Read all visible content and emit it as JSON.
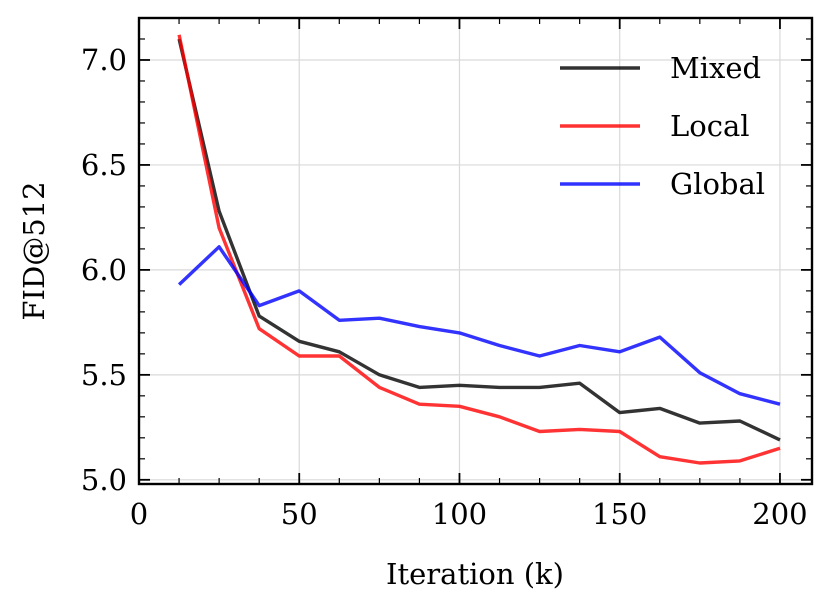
{
  "chart_data": {
    "type": "line",
    "title": "",
    "xlabel": "Iteration (k)",
    "ylabel": "FID@512",
    "xlim": [
      0,
      210
    ],
    "ylim": [
      4.98,
      7.2
    ],
    "grid": true,
    "legend_position": "top-right",
    "x_ticks": [
      0,
      50,
      100,
      150,
      200
    ],
    "x_tick_labels": [
      "0",
      "50",
      "100",
      "150",
      "200"
    ],
    "y_ticks": [
      5.0,
      5.5,
      6.0,
      6.5,
      7.0
    ],
    "y_tick_labels": [
      "5.0",
      "5.5",
      "6.0",
      "6.5",
      "7.0"
    ],
    "x": [
      12.5,
      25,
      37.5,
      50,
      62.5,
      75,
      87.5,
      100,
      112.5,
      125,
      137.5,
      150,
      162.5,
      175,
      187.5,
      200
    ],
    "series": [
      {
        "name": "Mixed",
        "color": "#000000",
        "values": [
          7.1,
          6.28,
          5.78,
          5.66,
          5.61,
          5.5,
          5.44,
          5.45,
          5.44,
          5.44,
          5.46,
          5.32,
          5.34,
          5.27,
          5.28,
          5.19
        ]
      },
      {
        "name": "Local",
        "color": "#ff0000",
        "values": [
          7.12,
          6.2,
          5.72,
          5.59,
          5.59,
          5.44,
          5.36,
          5.35,
          5.3,
          5.23,
          5.24,
          5.23,
          5.11,
          5.08,
          5.09,
          5.15
        ]
      },
      {
        "name": "Global",
        "color": "#0000ff",
        "values": [
          5.93,
          6.11,
          5.83,
          5.9,
          5.76,
          5.77,
          5.73,
          5.7,
          5.64,
          5.59,
          5.64,
          5.61,
          5.68,
          5.51,
          5.41,
          5.36
        ]
      }
    ]
  }
}
